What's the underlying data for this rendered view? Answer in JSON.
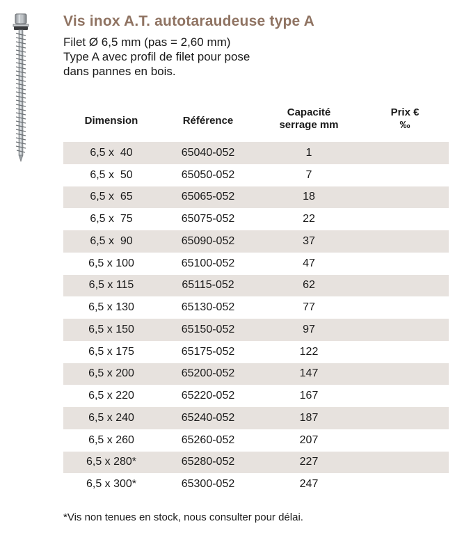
{
  "product": {
    "title": "Vis inox A.T. autotaraudeuse type A",
    "description": [
      "Filet Ø 6,5 mm (pas = 2,60 mm)",
      "Type A avec profil de filet pour pose",
      "dans pannes en bois."
    ],
    "image_icon": "screw-icon"
  },
  "table": {
    "headers": {
      "dimension": "Dimension",
      "reference": "Référence",
      "capacite_line1": "Capacité",
      "capacite_line2": "serrage mm",
      "prix_line1": "Prix €",
      "prix_line2": "‰"
    },
    "rows": [
      {
        "dimension": "6,5 x  40",
        "reference": "65040-052",
        "capacite": "1",
        "prix": ""
      },
      {
        "dimension": "6,5 x  50",
        "reference": "65050-052",
        "capacite": "7",
        "prix": ""
      },
      {
        "dimension": "6,5 x  65",
        "reference": "65065-052",
        "capacite": "18",
        "prix": ""
      },
      {
        "dimension": "6,5 x  75",
        "reference": "65075-052",
        "capacite": "22",
        "prix": ""
      },
      {
        "dimension": "6,5 x  90",
        "reference": "65090-052",
        "capacite": "37",
        "prix": ""
      },
      {
        "dimension": "6,5 x 100",
        "reference": "65100-052",
        "capacite": "47",
        "prix": ""
      },
      {
        "dimension": "6,5 x 115",
        "reference": "65115-052",
        "capacite": "62",
        "prix": ""
      },
      {
        "dimension": "6,5 x 130",
        "reference": "65130-052",
        "capacite": "77",
        "prix": ""
      },
      {
        "dimension": "6,5 x 150",
        "reference": "65150-052",
        "capacite": "97",
        "prix": ""
      },
      {
        "dimension": "6,5 x 175",
        "reference": "65175-052",
        "capacite": "122",
        "prix": ""
      },
      {
        "dimension": "6,5 x 200",
        "reference": "65200-052",
        "capacite": "147",
        "prix": ""
      },
      {
        "dimension": "6,5 x 220",
        "reference": "65220-052",
        "capacite": "167",
        "prix": ""
      },
      {
        "dimension": "6,5 x 240",
        "reference": "65240-052",
        "capacite": "187",
        "prix": ""
      },
      {
        "dimension": "6,5 x 260",
        "reference": "65260-052",
        "capacite": "207",
        "prix": ""
      },
      {
        "dimension": "6,5 x 280*",
        "reference": "65280-052",
        "capacite": "227",
        "prix": ""
      },
      {
        "dimension": "6,5 x 300*",
        "reference": "65300-052",
        "capacite": "247",
        "prix": ""
      }
    ]
  },
  "footnote": "*Vis non tenues en stock, nous consulter pour délai.",
  "colors": {
    "title": "#8f7362",
    "row_shade": "#e7e2de"
  }
}
